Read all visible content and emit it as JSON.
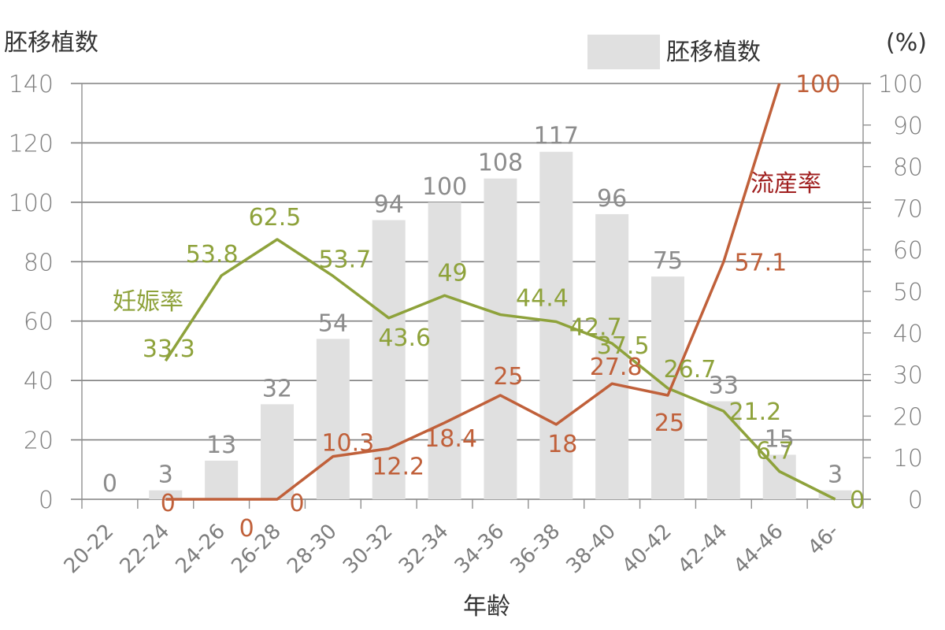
{
  "chart_data": {
    "type": "bar+line",
    "xlabel": "年齢",
    "ylabel_left": "胚移植数",
    "ylabel_right": "(%)",
    "legend_label": "胚移植数",
    "ylim_left": [
      0,
      140
    ],
    "yticks_left": [
      0,
      20,
      40,
      60,
      80,
      100,
      120,
      140
    ],
    "ylim_right": [
      0,
      100
    ],
    "yticks_right": [
      0,
      10,
      20,
      30,
      40,
      50,
      60,
      70,
      80,
      90,
      100
    ],
    "categories": [
      "20-22",
      "22-24",
      "24-26",
      "26-28",
      "28-30",
      "30-32",
      "32-34",
      "34-36",
      "36-38",
      "38-40",
      "40-42",
      "42-44",
      "44-46",
      "46-"
    ],
    "series": [
      {
        "name": "胚移植数",
        "kind": "bar",
        "axis": "left",
        "color": "#e0e0e0",
        "values": [
          0,
          3,
          13,
          32,
          54,
          94,
          100,
          108,
          117,
          96,
          75,
          33,
          15,
          3
        ]
      },
      {
        "name": "妊娠率",
        "kind": "line",
        "axis": "right",
        "color": "#8ea23b",
        "values": [
          null,
          33.3,
          53.8,
          62.5,
          53.7,
          43.6,
          49,
          44.4,
          42.7,
          37.5,
          26.7,
          21.2,
          6.7,
          0
        ]
      },
      {
        "name": "流産率",
        "kind": "line",
        "axis": "right",
        "color": "#c0603a",
        "label_color": "#a02020",
        "values": [
          null,
          0,
          0,
          0,
          10.3,
          12.2,
          18.4,
          25,
          18,
          27.8,
          25,
          57.1,
          100,
          null
        ],
        "labels": [
          "",
          "0",
          "0",
          "0",
          "10.3",
          "12.2",
          "18.4",
          "25",
          "18",
          "27.8",
          "25",
          "57.1",
          "100",
          ""
        ]
      }
    ],
    "grid": true,
    "legend_position": "top-right"
  }
}
